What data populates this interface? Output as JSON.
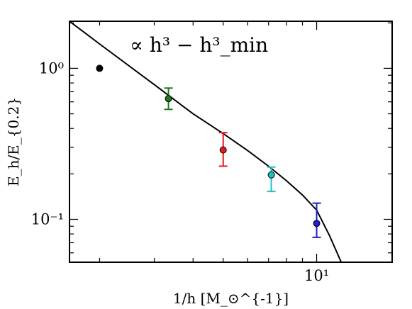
{
  "chart_data": {
    "type": "scatter",
    "title": "",
    "xlabel": "1/h [M_⊙^{-1}]",
    "ylabel": "E_h/E_{0.2}",
    "xscale": "log",
    "yscale": "log",
    "xlim": [
      1.6,
      17.5
    ],
    "ylim": [
      0.052,
      2.05
    ],
    "xticks": [
      {
        "value": 10,
        "label": "10¹"
      }
    ],
    "yticks": [
      {
        "value": 1,
        "label": "10⁰"
      },
      {
        "value": 0.1,
        "label": "10⁻¹"
      }
    ],
    "grid": false,
    "legend": "none",
    "annotation": "∝ h³ − h³_min",
    "series": [
      {
        "type": "points",
        "points": [
          {
            "x": 2.0,
            "y": 1.0,
            "err_low": null,
            "err_high": null,
            "color": "#000000"
          },
          {
            "x": 3.333,
            "y": 0.63,
            "err_low": 0.535,
            "err_high": 0.74,
            "color": "#1a7a1a"
          },
          {
            "x": 5.0,
            "y": 0.288,
            "err_low": 0.225,
            "err_high": 0.375,
            "color": "#e41a1c"
          },
          {
            "x": 7.143,
            "y": 0.197,
            "err_low": 0.153,
            "err_high": 0.222,
            "color": "#1fbfbf"
          },
          {
            "x": 10.0,
            "y": 0.094,
            "err_low": 0.076,
            "err_high": 0.128,
            "color": "#1f1fd0"
          }
        ]
      },
      {
        "type": "line",
        "color": "#000000",
        "x": [
          1.6,
          2.0,
          3.0,
          4.0,
          5.0,
          6.0,
          7.0,
          8.0,
          9.0,
          10.0,
          11.0,
          12.0
        ],
        "y": [
          2.05,
          1.45,
          0.78,
          0.5,
          0.37,
          0.285,
          0.225,
          0.18,
          0.145,
          0.115,
          0.078,
          0.052
        ]
      }
    ]
  }
}
